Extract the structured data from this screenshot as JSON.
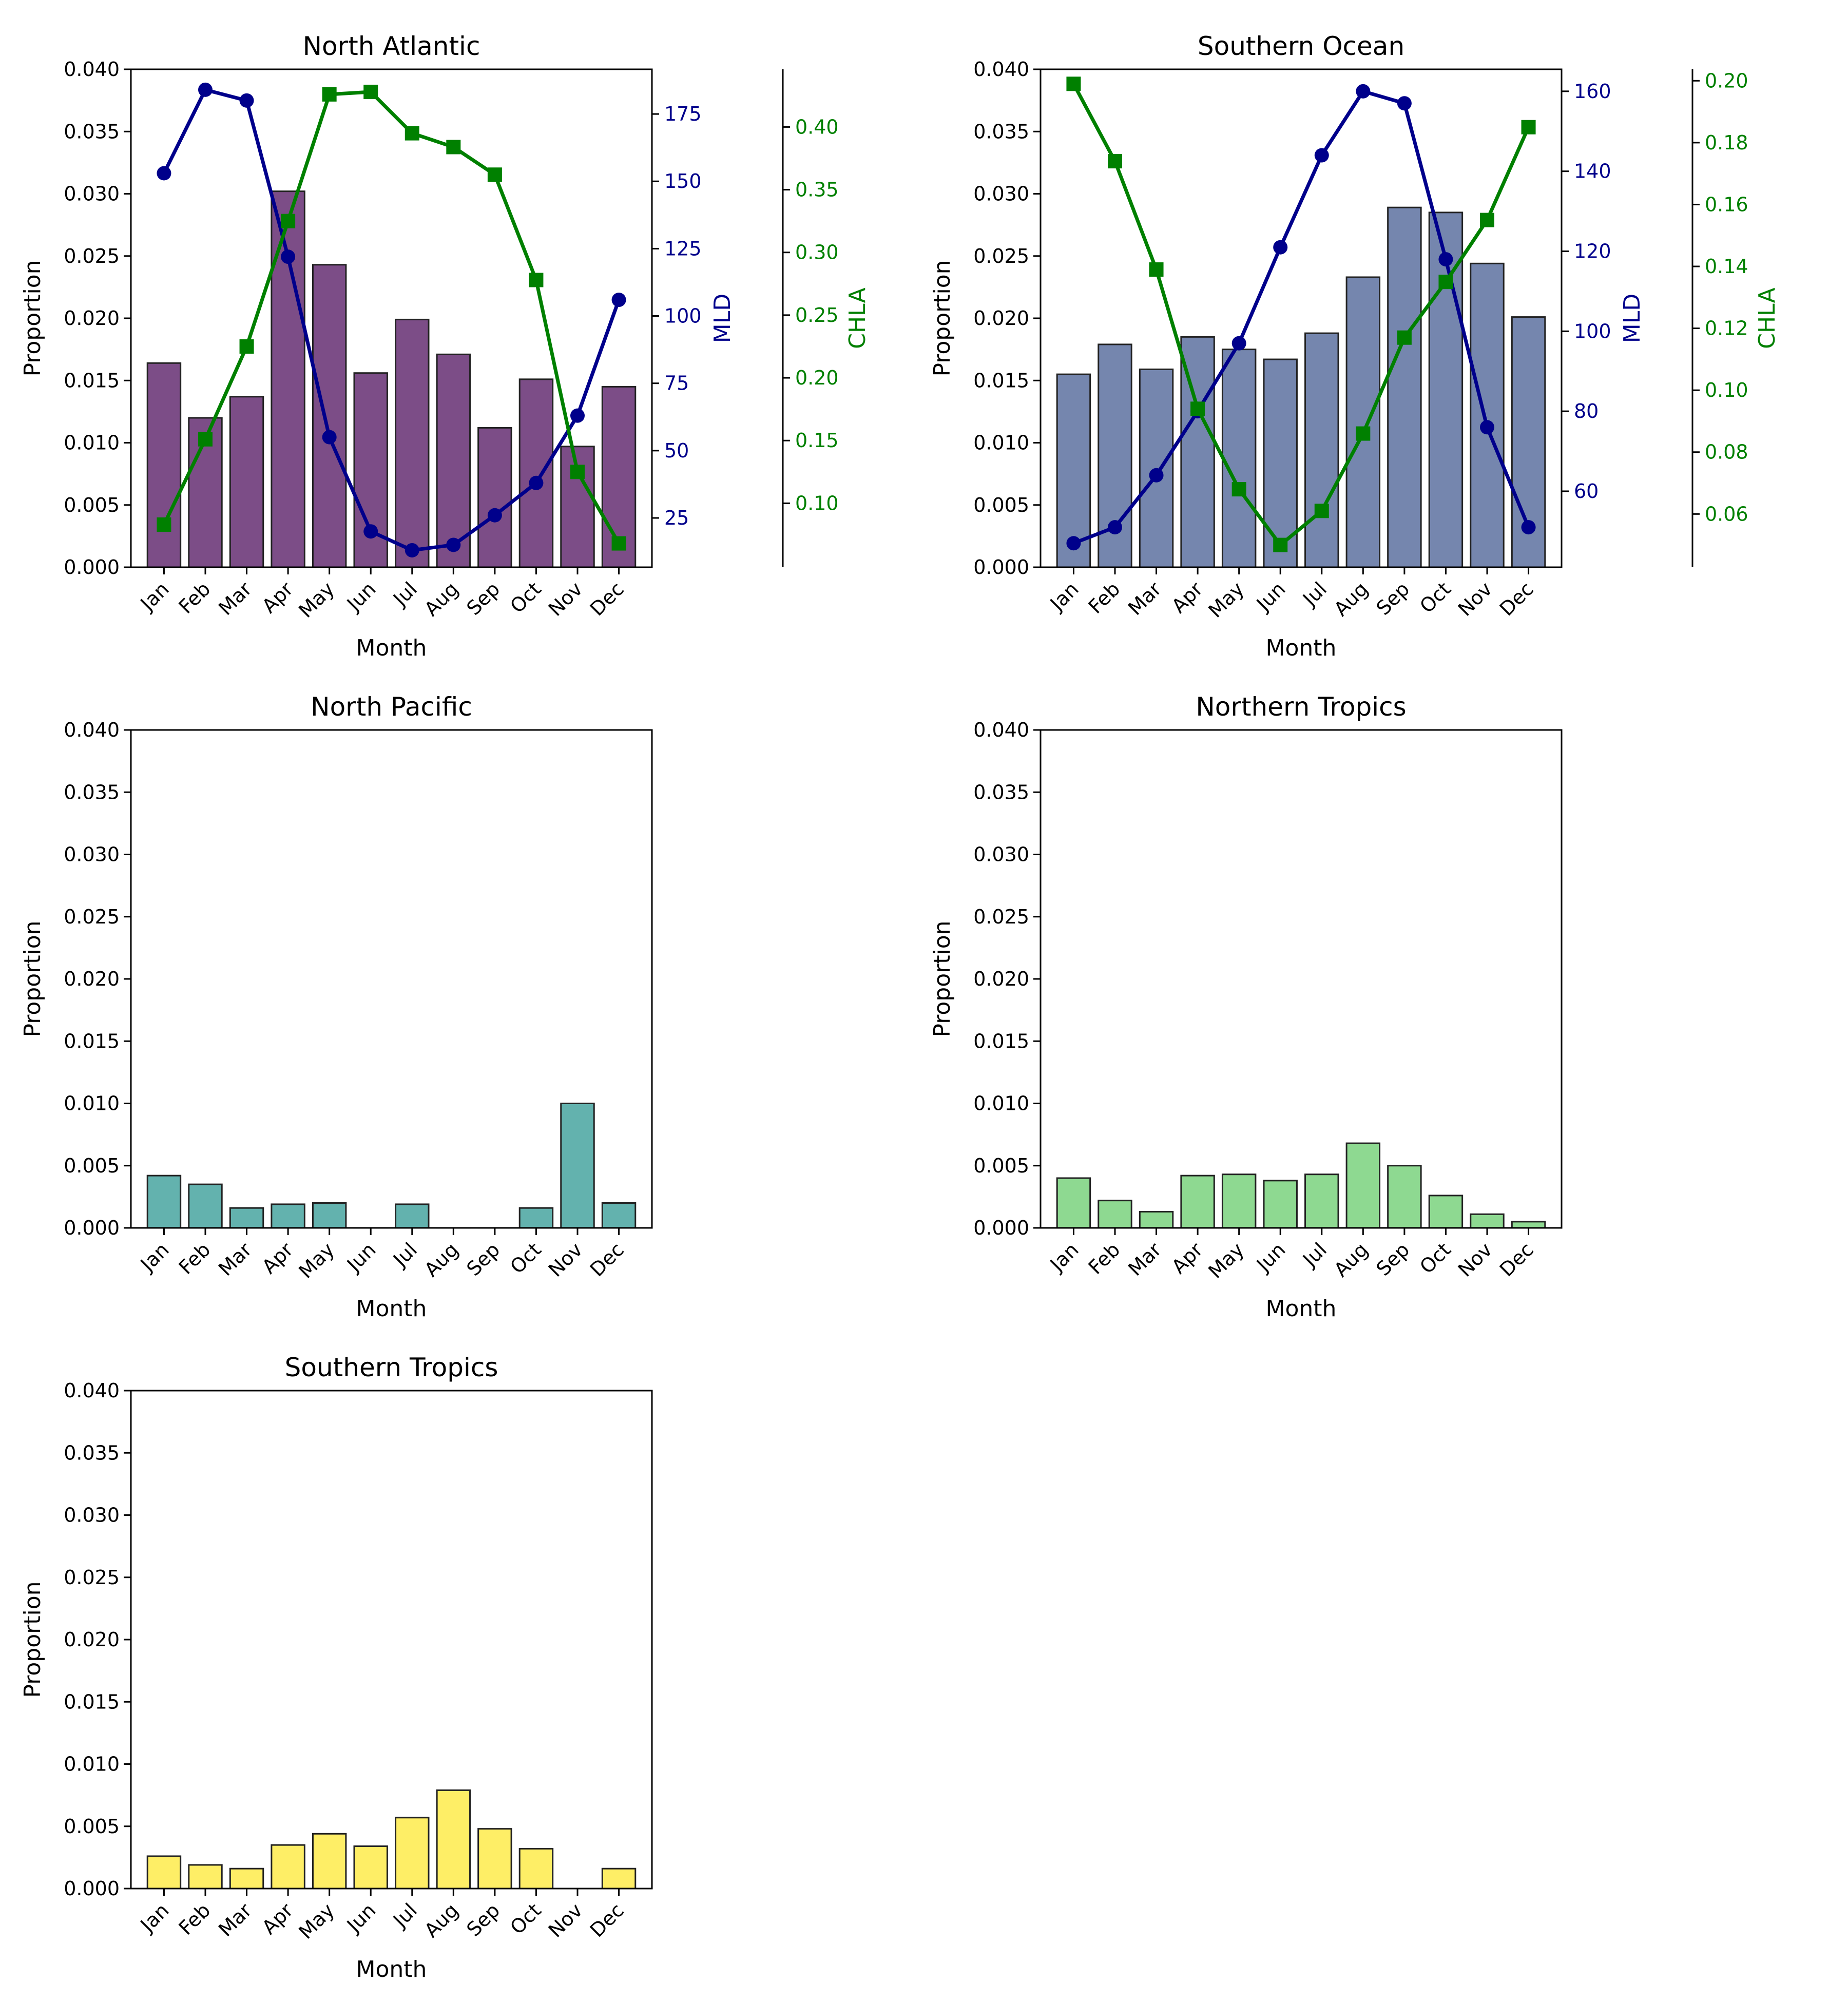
{
  "months": [
    "Jan",
    "Feb",
    "Mar",
    "Apr",
    "May",
    "Jun",
    "Jul",
    "Aug",
    "Sep",
    "Oct",
    "Nov",
    "Dec"
  ],
  "colors": {
    "mld": "#00008b",
    "chla": "#008000",
    "bar_edge": "#222222"
  },
  "chart_data": [
    {
      "type": "bar",
      "title": "North Atlantic",
      "xlabel": "Month",
      "ylabel": "Proportion",
      "ylim": [
        0,
        0.04
      ],
      "yticks": [
        "0.000",
        "0.005",
        "0.010",
        "0.015",
        "0.020",
        "0.025",
        "0.030",
        "0.035",
        "0.040"
      ],
      "bar_color": "#440154",
      "categories": [
        "Jan",
        "Feb",
        "Mar",
        "Apr",
        "May",
        "Jun",
        "Jul",
        "Aug",
        "Sep",
        "Oct",
        "Nov",
        "Dec"
      ],
      "values": [
        0.0164,
        0.012,
        0.0137,
        0.0302,
        0.0243,
        0.0156,
        0.0199,
        0.0171,
        0.0112,
        0.0151,
        0.0097,
        0.0145
      ],
      "mld": {
        "label": "MLD",
        "ylim": [
          6.7,
          191.6
        ],
        "ticks": [
          25,
          50,
          75,
          100,
          125,
          150,
          175
        ],
        "values": [
          153,
          184,
          180,
          122,
          55,
          20,
          13,
          15,
          26,
          38,
          63,
          106
        ]
      },
      "chla": {
        "label": "CHLA",
        "ylim": [
          0.049,
          0.446
        ],
        "ticks": [
          "0.10",
          "0.15",
          "0.20",
          "0.25",
          "0.30",
          "0.35",
          "0.40"
        ],
        "values": [
          0.083,
          0.151,
          0.225,
          0.325,
          0.426,
          0.428,
          0.395,
          0.384,
          0.362,
          0.278,
          0.125,
          0.068
        ]
      }
    },
    {
      "type": "bar",
      "title": "Southern Ocean",
      "xlabel": "Month",
      "ylabel": "Proportion",
      "ylim": [
        0,
        0.04
      ],
      "yticks": [
        "0.000",
        "0.005",
        "0.010",
        "0.015",
        "0.020",
        "0.025",
        "0.030",
        "0.035",
        "0.040"
      ],
      "bar_color": "#3b528b",
      "categories": [
        "Jan",
        "Feb",
        "Mar",
        "Apr",
        "May",
        "Jun",
        "Jul",
        "Aug",
        "Sep",
        "Oct",
        "Nov",
        "Dec"
      ],
      "values": [
        0.0155,
        0.0179,
        0.0159,
        0.0185,
        0.0175,
        0.0167,
        0.0188,
        0.0233,
        0.0289,
        0.0285,
        0.0244,
        0.0201
      ],
      "mld": {
        "label": "MLD",
        "ylim": [
          41.0,
          165.5
        ],
        "ticks": [
          60,
          80,
          100,
          120,
          140,
          160
        ],
        "values": [
          47,
          51,
          64,
          80,
          97,
          121,
          144,
          160,
          157,
          118,
          76,
          51
        ]
      },
      "chla": {
        "label": "CHLA",
        "ylim": [
          0.0428,
          0.2037
        ],
        "ticks": [
          "0.06",
          "0.08",
          "0.10",
          "0.12",
          "0.14",
          "0.16",
          "0.18",
          "0.20"
        ],
        "values": [
          0.199,
          0.174,
          0.139,
          0.094,
          0.068,
          0.05,
          0.061,
          0.086,
          0.117,
          0.135,
          0.155,
          0.185
        ]
      }
    },
    {
      "type": "bar",
      "title": "North Pacific",
      "xlabel": "Month",
      "ylabel": "Proportion",
      "ylim": [
        0,
        0.04
      ],
      "yticks": [
        "0.000",
        "0.005",
        "0.010",
        "0.015",
        "0.020",
        "0.025",
        "0.030",
        "0.035",
        "0.040"
      ],
      "bar_color": "#21918c",
      "categories": [
        "Jan",
        "Feb",
        "Mar",
        "Apr",
        "May",
        "Jun",
        "Jul",
        "Aug",
        "Sep",
        "Oct",
        "Nov",
        "Dec"
      ],
      "values": [
        0.0042,
        0.0035,
        0.0016,
        0.0019,
        0.002,
        0.0,
        0.0019,
        0.0,
        0.0,
        0.0016,
        0.01,
        0.002
      ]
    },
    {
      "type": "bar",
      "title": "Northern Tropics",
      "xlabel": "Month",
      "ylabel": "Proportion",
      "ylim": [
        0,
        0.04
      ],
      "yticks": [
        "0.000",
        "0.005",
        "0.010",
        "0.015",
        "0.020",
        "0.025",
        "0.030",
        "0.035",
        "0.040"
      ],
      "bar_color": "#5ec962",
      "categories": [
        "Jan",
        "Feb",
        "Mar",
        "Apr",
        "May",
        "Jun",
        "Jul",
        "Aug",
        "Sep",
        "Oct",
        "Nov",
        "Dec"
      ],
      "values": [
        0.004,
        0.0022,
        0.0013,
        0.0042,
        0.0043,
        0.0038,
        0.0043,
        0.0068,
        0.005,
        0.0026,
        0.0011,
        0.0005
      ]
    },
    {
      "type": "bar",
      "title": "Southern Tropics",
      "xlabel": "Month",
      "ylabel": "Proportion",
      "ylim": [
        0,
        0.04
      ],
      "yticks": [
        "0.000",
        "0.005",
        "0.010",
        "0.015",
        "0.020",
        "0.025",
        "0.030",
        "0.035",
        "0.040"
      ],
      "bar_color": "#fde725",
      "categories": [
        "Jan",
        "Feb",
        "Mar",
        "Apr",
        "May",
        "Jun",
        "Jul",
        "Aug",
        "Sep",
        "Oct",
        "Nov",
        "Dec"
      ],
      "values": [
        0.0026,
        0.0019,
        0.0016,
        0.0035,
        0.0044,
        0.0034,
        0.0057,
        0.0079,
        0.0048,
        0.0032,
        0.0,
        0.0016
      ]
    }
  ]
}
